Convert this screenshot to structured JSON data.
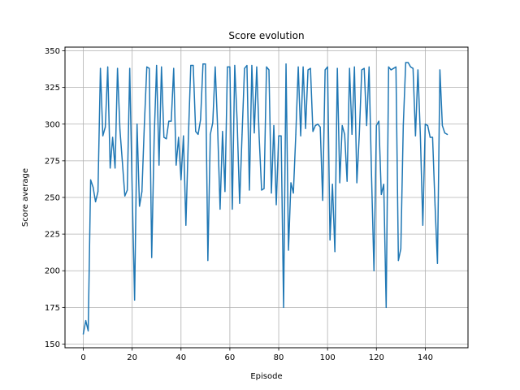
{
  "chart_data": {
    "type": "line",
    "title": "Score evolution",
    "xlabel": "Episode",
    "ylabel": "Score average",
    "xlim": [
      -7.5,
      157.5
    ],
    "ylim": [
      147.5,
      352.5
    ],
    "xticks": [
      0,
      20,
      40,
      60,
      80,
      100,
      120,
      140
    ],
    "yticks": [
      150,
      175,
      200,
      225,
      250,
      275,
      300,
      325,
      350
    ],
    "grid": true,
    "line_color": "#1f77b4",
    "series": [
      {
        "x": [
          0,
          1,
          2,
          3,
          4,
          5,
          6,
          7,
          8,
          9,
          10,
          11,
          12,
          13,
          14,
          15,
          16,
          17,
          18,
          19,
          20,
          21,
          22,
          23,
          24,
          25,
          26,
          27,
          28,
          29,
          30,
          31,
          32,
          33,
          34,
          35,
          36,
          37,
          38,
          39,
          40,
          41,
          42,
          43,
          44,
          45,
          46,
          47,
          48,
          49,
          50,
          51,
          52,
          53,
          54,
          55,
          56,
          57,
          58,
          59,
          60,
          61,
          62,
          63,
          64,
          65,
          66,
          67,
          68,
          69,
          70,
          71,
          72,
          73,
          74,
          75,
          76,
          77,
          78,
          79,
          80,
          81,
          82,
          83,
          84,
          85,
          86,
          87,
          88,
          89,
          90,
          91,
          92,
          93,
          94,
          95,
          96,
          97,
          98,
          99,
          100,
          101,
          102,
          103,
          104,
          105,
          106,
          107,
          108,
          109,
          110,
          111,
          112,
          113,
          114,
          115,
          116,
          117,
          118,
          119,
          120,
          121,
          122,
          123,
          124,
          125,
          126,
          127,
          128,
          129,
          130,
          131,
          132,
          133,
          134,
          135,
          136,
          137,
          138,
          139,
          140,
          141,
          142,
          143,
          144,
          145,
          146,
          147,
          148,
          149
        ],
        "values": [
          157,
          166,
          159,
          262,
          257,
          247,
          254,
          338,
          292,
          298,
          339,
          270,
          291,
          270,
          338,
          296,
          274,
          251,
          255,
          338,
          255,
          180,
          300,
          244,
          254,
          300,
          339,
          338,
          209,
          290,
          340,
          272,
          339,
          291,
          290,
          302,
          302,
          338,
          272,
          291,
          262,
          292,
          231,
          290,
          340,
          340,
          295,
          293,
          303,
          341,
          341,
          207,
          293,
          301,
          339,
          297,
          242,
          295,
          254,
          339,
          339,
          242,
          340,
          301,
          246,
          293,
          338,
          340,
          255,
          340,
          294,
          339,
          291,
          255,
          256,
          339,
          337,
          253,
          299,
          245,
          292,
          292,
          175,
          341,
          214,
          260,
          253,
          293,
          339,
          292,
          339,
          297,
          337,
          338,
          295,
          299,
          300,
          298,
          248,
          337,
          339,
          221,
          259,
          213,
          338,
          260,
          299,
          293,
          261,
          338,
          293,
          339,
          260,
          293,
          337,
          338,
          299,
          339,
          265,
          200,
          299,
          302,
          252,
          259,
          175,
          339,
          337,
          338,
          339,
          207,
          215,
          299,
          342,
          342,
          339,
          338,
          292,
          337,
          292,
          231,
          300,
          299,
          291,
          291,
          245,
          205,
          337,
          299,
          294,
          293
        ]
      }
    ]
  }
}
